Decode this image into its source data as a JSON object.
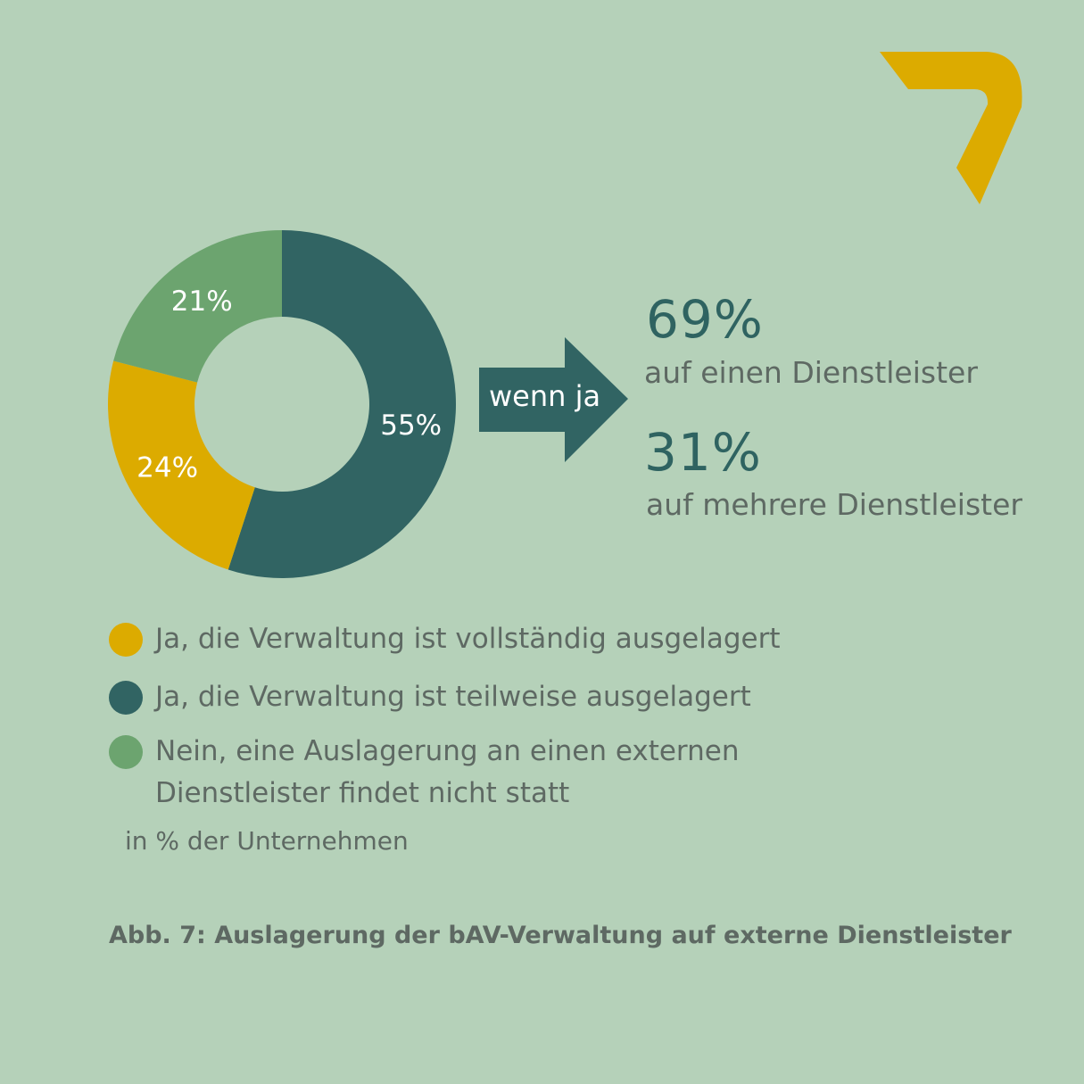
{
  "chart_data": {
    "type": "pie",
    "variant": "donut",
    "slices": [
      {
        "label": "Ja, die Verwaltung ist teilweise ausgelagert",
        "value": 55,
        "display": "55%",
        "color": "#316463"
      },
      {
        "label": "Ja, die Verwaltung ist vollständig ausgelagert",
        "value": 24,
        "display": "24%",
        "color": "#dcab00"
      },
      {
        "label": "Nein, eine Auslagerung an einen externen Dienstleister findet nicht statt",
        "value": 21,
        "display": "21%",
        "color": "#6ca46f"
      }
    ],
    "unit_note": "in % der Unternehmen",
    "caption": "Abb. 7: Auslagerung der bAV-Verwaltung auf externe Dienstleister"
  },
  "arrow": {
    "label": "wenn ja",
    "color": "#316463"
  },
  "followup": [
    {
      "value": "69%",
      "label": "auf einen Dienstleister"
    },
    {
      "value": "31%",
      "label": "auf mehrere Dienstleister"
    }
  ],
  "legend": [
    {
      "label": "Ja, die Verwaltung ist vollständig ausgelagert",
      "color": "#dcab00"
    },
    {
      "label": "Ja, die Verwaltung ist teilweise ausgelagert",
      "color": "#316463"
    },
    {
      "label": "Nein, eine Auslagerung an einen externen Dienstleister findet nicht statt",
      "color": "#6ca46f"
    }
  ],
  "colors": {
    "background": "#b5d1b9",
    "accent": "#dcab00",
    "text": "#5e6963",
    "dark": "#2f6361"
  },
  "logo_icon": "chevron-seven-icon"
}
